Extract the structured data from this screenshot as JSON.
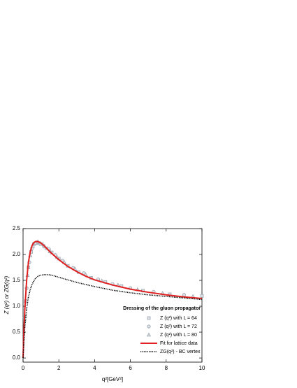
{
  "chart_data": {
    "type": "line",
    "x_label": "q²[GeV²]",
    "y_label": "Z (q²) or ZG(q²)",
    "legend_title": "Dressing of the gluon propagator",
    "legend": "lower right",
    "xlim": [
      0,
      10
    ],
    "xticks": [
      0,
      2,
      4,
      6,
      8,
      10
    ],
    "ylim": [
      -0.08,
      2.5
    ],
    "yticks": [
      {
        "value": 0,
        "label": "0.0"
      },
      {
        "value": 0.5,
        "label": "0.5"
      },
      {
        "value": 1,
        "label": "1.0"
      },
      {
        "value": 1.5,
        "label": "1.5"
      },
      {
        "value": 2,
        "label": "2.0"
      },
      {
        "value": 2.5,
        "label": "2.5"
      }
    ],
    "series": [
      {
        "name": "Z (q²) with L = 64",
        "color": "#9aa3ad",
        "mode": "markers",
        "marker": "square",
        "x": [
          0.15,
          0.3,
          0.45,
          0.6,
          0.75,
          0.9,
          1.05,
          1.3,
          1.6,
          2.0,
          2.5,
          3.1,
          3.8,
          4.6,
          5.5,
          6.7,
          8.2,
          10
        ],
        "values": [
          1.1,
          1.75,
          2.05,
          2.2,
          2.23,
          2.22,
          2.2,
          2.12,
          2.04,
          1.92,
          1.78,
          1.66,
          1.55,
          1.47,
          1.39,
          1.3,
          1.23,
          1.2
        ]
      },
      {
        "name": "Z (q²) with L = 72",
        "color": "#9aa3ad",
        "mode": "markers",
        "marker": "circle",
        "x": [
          0.2,
          0.35,
          0.5,
          0.65,
          0.8,
          0.95,
          1.15,
          1.45,
          1.8,
          2.2,
          2.8,
          3.4,
          4.2,
          5.0,
          6.0,
          7.3,
          9.0
        ],
        "values": [
          1.35,
          1.85,
          2.12,
          2.2,
          2.24,
          2.21,
          2.17,
          2.1,
          1.99,
          1.88,
          1.74,
          1.64,
          1.52,
          1.43,
          1.35,
          1.28,
          1.22
        ]
      },
      {
        "name": "Z (q²) with L = 80",
        "color": "#9aa3ad",
        "mode": "markers",
        "marker": "triangle",
        "x": [
          0.1,
          0.25,
          0.4,
          0.55,
          0.7,
          0.85,
          1.0,
          1.2,
          1.5,
          1.9,
          2.3,
          2.9,
          3.5,
          4.4,
          5.3,
          6.4,
          7.8,
          9.5
        ],
        "values": [
          0.8,
          1.6,
          1.98,
          2.16,
          2.22,
          2.24,
          2.2,
          2.15,
          2.06,
          1.95,
          1.85,
          1.72,
          1.61,
          1.49,
          1.41,
          1.32,
          1.25,
          1.19
        ]
      },
      {
        "name": "Fit for lattice data",
        "color": "#e02020",
        "mode": "line",
        "dash": "solid",
        "x": [
          0,
          0.05,
          0.1,
          0.2,
          0.3,
          0.4,
          0.5,
          0.6,
          0.7,
          0.8,
          0.9,
          1.0,
          1.2,
          1.4,
          1.6,
          1.8,
          2,
          2.5,
          3,
          3.5,
          4,
          5,
          6,
          7,
          8,
          9,
          10
        ],
        "values": [
          0,
          0.55,
          0.95,
          1.5,
          1.85,
          2.05,
          2.17,
          2.23,
          2.25,
          2.25,
          2.24,
          2.22,
          2.16,
          2.09,
          2.02,
          1.96,
          1.9,
          1.77,
          1.67,
          1.58,
          1.51,
          1.41,
          1.33,
          1.27,
          1.22,
          1.18,
          1.15
        ]
      },
      {
        "name": "ZG(q²) - BC vertex",
        "color": "#000000",
        "mode": "line",
        "dash": "dotted",
        "x": [
          0,
          0.05,
          0.1,
          0.2,
          0.3,
          0.4,
          0.5,
          0.6,
          0.7,
          0.8,
          0.9,
          1.0,
          1.2,
          1.4,
          1.6,
          1.8,
          2,
          2.5,
          3,
          3.5,
          4,
          5,
          6,
          7,
          8,
          9,
          10
        ],
        "values": [
          0,
          0.35,
          0.6,
          0.95,
          1.18,
          1.32,
          1.42,
          1.49,
          1.54,
          1.57,
          1.59,
          1.6,
          1.61,
          1.61,
          1.6,
          1.58,
          1.56,
          1.51,
          1.46,
          1.42,
          1.38,
          1.31,
          1.26,
          1.22,
          1.19,
          1.16,
          1.13
        ]
      }
    ]
  }
}
